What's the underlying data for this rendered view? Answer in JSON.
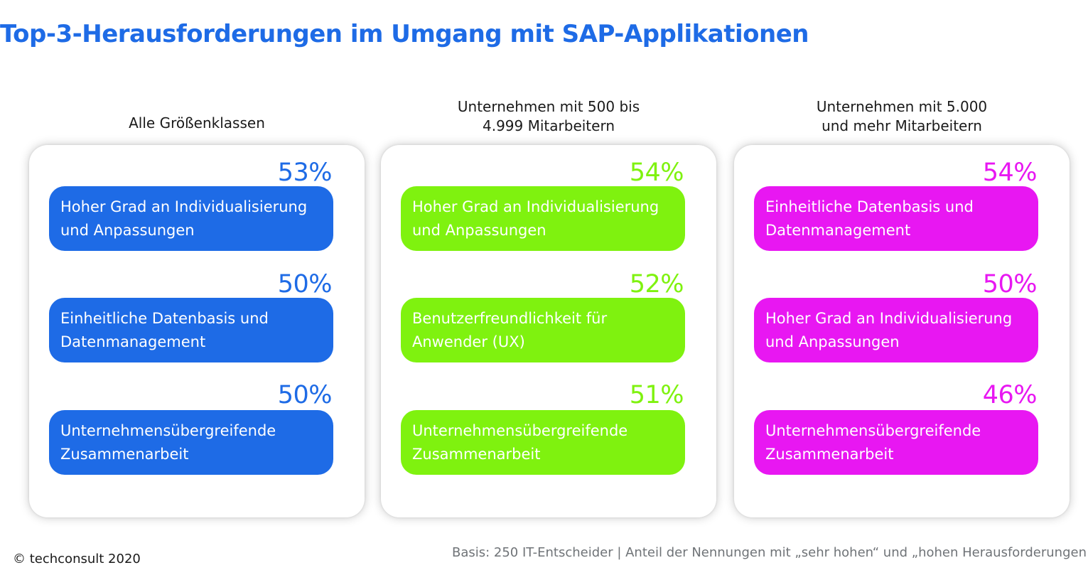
{
  "title": "Top-3-Herausforderungen im Umgang mit SAP-Applikationen",
  "chart_data": {
    "type": "table",
    "groups": [
      {
        "name": "Alle Größenklassen",
        "color": "#1e6be6",
        "items": [
          {
            "label": "Hoher Grad an Individualisierung und Anpassungen",
            "value": 53,
            "display": "53%"
          },
          {
            "label": "Einheitliche Datenbasis und Datenmanagement",
            "value": 50,
            "display": "50%"
          },
          {
            "label": "Unternehmensübergreifende Zusammenarbeit",
            "value": 50,
            "display": "50%"
          }
        ]
      },
      {
        "name": "Unternehmen mit 500 bis\n4.999 Mitarbeitern",
        "color": "#7ff20f",
        "items": [
          {
            "label": "Hoher Grad an Individualisierung und Anpassungen",
            "value": 54,
            "display": "54%"
          },
          {
            "label": "Benutzerfreundlichkeit für Anwender (UX)",
            "value": 52,
            "display": "52%"
          },
          {
            "label": "Unternehmensübergreifende Zusammenarbeit",
            "value": 51,
            "display": "51%"
          }
        ]
      },
      {
        "name": "Unternehmen mit 5.000\nund mehr Mitarbeitern",
        "color": "#e817f2",
        "items": [
          {
            "label": "Einheitliche Datenbasis und Datenmanagement",
            "value": 54,
            "display": "54%"
          },
          {
            "label": "Hoher Grad an Individualisierung und Anpassungen",
            "value": 50,
            "display": "50%"
          },
          {
            "label": "Unternehmensübergreifende Zusammenarbeit",
            "value": 46,
            "display": "46%"
          }
        ]
      }
    ]
  },
  "footer": {
    "copyright": "© techconsult 2020",
    "basis": "Basis: 250 IT-Entscheider | Anteil der Nennungen mit „sehr hohen“ und „hohen Herausforderungen"
  }
}
